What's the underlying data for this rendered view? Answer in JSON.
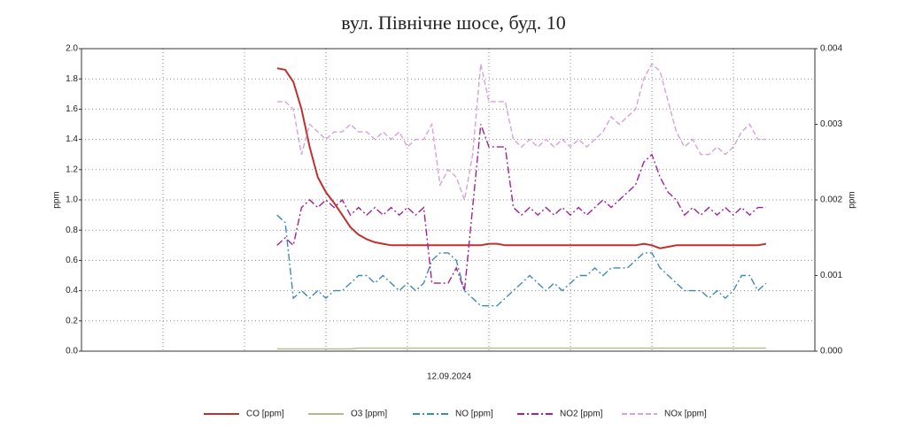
{
  "chart_data": {
    "type": "line",
    "title": "вул. Північне шосе, буд. 10",
    "xlabel": "12.09.2024",
    "ylabel": "ppm",
    "y2label": "ppm",
    "xlim": [
      0,
      90
    ],
    "ylim": [
      0,
      2
    ],
    "yticks": [
      {
        "value": 0,
        "label": "0.0"
      },
      0.2,
      0.4,
      0.6,
      0.8,
      {
        "value": 1,
        "label": "1.0"
      },
      1.2,
      1.4,
      1.6,
      1.8,
      {
        "value": 2,
        "label": "2.0"
      }
    ],
    "y2lim": [
      0,
      0.004
    ],
    "y2ticks": [
      {
        "value": 0,
        "label": "0.000"
      },
      0.001,
      0.002,
      0.003,
      0.004
    ],
    "grid": true,
    "legend": "bottom",
    "x": [
      24,
      25,
      26,
      27,
      28,
      29,
      30,
      31,
      32,
      33,
      34,
      35,
      36,
      37,
      38,
      39,
      40,
      41,
      42,
      43,
      44,
      45,
      46,
      47,
      48,
      49,
      50,
      51,
      52,
      53,
      54,
      55,
      56,
      57,
      58,
      59,
      60,
      61,
      62,
      63,
      64,
      65,
      66,
      67,
      68,
      69,
      70,
      71,
      72,
      73,
      74,
      75,
      76,
      77,
      78,
      79,
      80,
      81,
      82,
      83,
      84
    ],
    "series": [
      {
        "name": "CO [ppm]",
        "color": "#c0302c",
        "dash": "none",
        "values": [
          1.87,
          1.86,
          1.78,
          1.6,
          1.35,
          1.15,
          1.05,
          0.98,
          0.9,
          0.82,
          0.77,
          0.74,
          0.72,
          0.71,
          0.7,
          0.7,
          0.7,
          0.7,
          0.7,
          0.7,
          0.7,
          0.7,
          0.7,
          0.7,
          0.7,
          0.7,
          0.71,
          0.71,
          0.7,
          0.7,
          0.7,
          0.7,
          0.7,
          0.7,
          0.7,
          0.7,
          0.7,
          0.7,
          0.7,
          0.7,
          0.7,
          0.7,
          0.7,
          0.7,
          0.7,
          0.71,
          0.7,
          0.68,
          0.69,
          0.7,
          0.7,
          0.7,
          0.7,
          0.7,
          0.7,
          0.7,
          0.7,
          0.7,
          0.7,
          0.7,
          0.71
        ]
      },
      {
        "name": "O3 [ppm]",
        "color": "#b5b88a",
        "dash": "none",
        "values": [
          0.015,
          0.015,
          0.015,
          0.015,
          0.015,
          0.015,
          0.015,
          0.015,
          0.015,
          0.015,
          0.02,
          0.02,
          0.02,
          0.02,
          0.02,
          0.02,
          0.02,
          0.02,
          0.02,
          0.02,
          0.02,
          0.02,
          0.02,
          0.02,
          0.02,
          0.02,
          0.02,
          0.02,
          0.02,
          0.02,
          0.02,
          0.02,
          0.02,
          0.02,
          0.02,
          0.02,
          0.02,
          0.02,
          0.02,
          0.02,
          0.02,
          0.02,
          0.02,
          0.02,
          0.02,
          0.02,
          0.02,
          0.02,
          0.02,
          0.02,
          0.02,
          0.02,
          0.02,
          0.02,
          0.02,
          0.02,
          0.02,
          0.02,
          0.02,
          0.02,
          0.02
        ]
      },
      {
        "name": "NO [ppm]",
        "color": "#3f8ab5",
        "dash": "8 3 2 3",
        "axis": "y2",
        "values": [
          0.0018,
          0.0017,
          0.0007,
          0.0008,
          0.0007,
          0.0008,
          0.0007,
          0.0008,
          0.0008,
          0.0009,
          0.001,
          0.001,
          0.0009,
          0.001,
          0.0009,
          0.0008,
          0.0009,
          0.0008,
          0.0009,
          0.0012,
          0.0013,
          0.0013,
          0.0012,
          0.0008,
          0.0007,
          0.0006,
          0.0006,
          0.0006,
          0.0007,
          0.0008,
          0.0009,
          0.001,
          0.0009,
          0.0008,
          0.0009,
          0.0008,
          0.0009,
          0.001,
          0.001,
          0.0011,
          0.001,
          0.0011,
          0.0011,
          0.0011,
          0.0012,
          0.0013,
          0.0013,
          0.0011,
          0.001,
          0.0009,
          0.0008,
          0.0008,
          0.0008,
          0.0007,
          0.0008,
          0.0007,
          0.0008,
          0.001,
          0.001,
          0.0008,
          0.0009
        ]
      },
      {
        "name": "NO2 [ppm]",
        "color": "#a0209a",
        "dash": "8 3 2 3",
        "axis": "y2",
        "values": [
          0.0014,
          0.0015,
          0.0014,
          0.0019,
          0.002,
          0.0019,
          0.002,
          0.0019,
          0.002,
          0.0018,
          0.0019,
          0.0018,
          0.0019,
          0.0018,
          0.0019,
          0.0018,
          0.0019,
          0.0018,
          0.0019,
          0.0009,
          0.0009,
          0.0009,
          0.0011,
          0.0008,
          0.0019,
          0.003,
          0.0027,
          0.0027,
          0.0027,
          0.0019,
          0.0018,
          0.0019,
          0.0018,
          0.0019,
          0.0018,
          0.0019,
          0.0018,
          0.0019,
          0.0018,
          0.0019,
          0.002,
          0.0019,
          0.002,
          0.0021,
          0.0022,
          0.0025,
          0.0026,
          0.0023,
          0.0021,
          0.002,
          0.0018,
          0.0019,
          0.0018,
          0.0019,
          0.0018,
          0.0019,
          0.0018,
          0.0019,
          0.0018,
          0.0019,
          0.0019
        ]
      },
      {
        "name": "NOx [ppm]",
        "color": "#d6a3d6",
        "dash": "6 3",
        "axis": "y2",
        "values": [
          0.0033,
          0.0033,
          0.0032,
          0.0026,
          0.003,
          0.0029,
          0.0028,
          0.0029,
          0.0029,
          0.003,
          0.0029,
          0.0029,
          0.0028,
          0.0029,
          0.0028,
          0.0029,
          0.0027,
          0.0028,
          0.0028,
          0.003,
          0.0022,
          0.0024,
          0.0023,
          0.002,
          0.0026,
          0.0038,
          0.0033,
          0.0033,
          0.0033,
          0.0028,
          0.0027,
          0.0028,
          0.0027,
          0.0028,
          0.0027,
          0.0028,
          0.0027,
          0.0028,
          0.0027,
          0.0028,
          0.0029,
          0.0031,
          0.003,
          0.0031,
          0.0032,
          0.0036,
          0.0038,
          0.0037,
          0.0033,
          0.0029,
          0.0027,
          0.0028,
          0.0026,
          0.0026,
          0.0027,
          0.0026,
          0.0027,
          0.0029,
          0.003,
          0.0028,
          0.0028
        ]
      }
    ]
  }
}
